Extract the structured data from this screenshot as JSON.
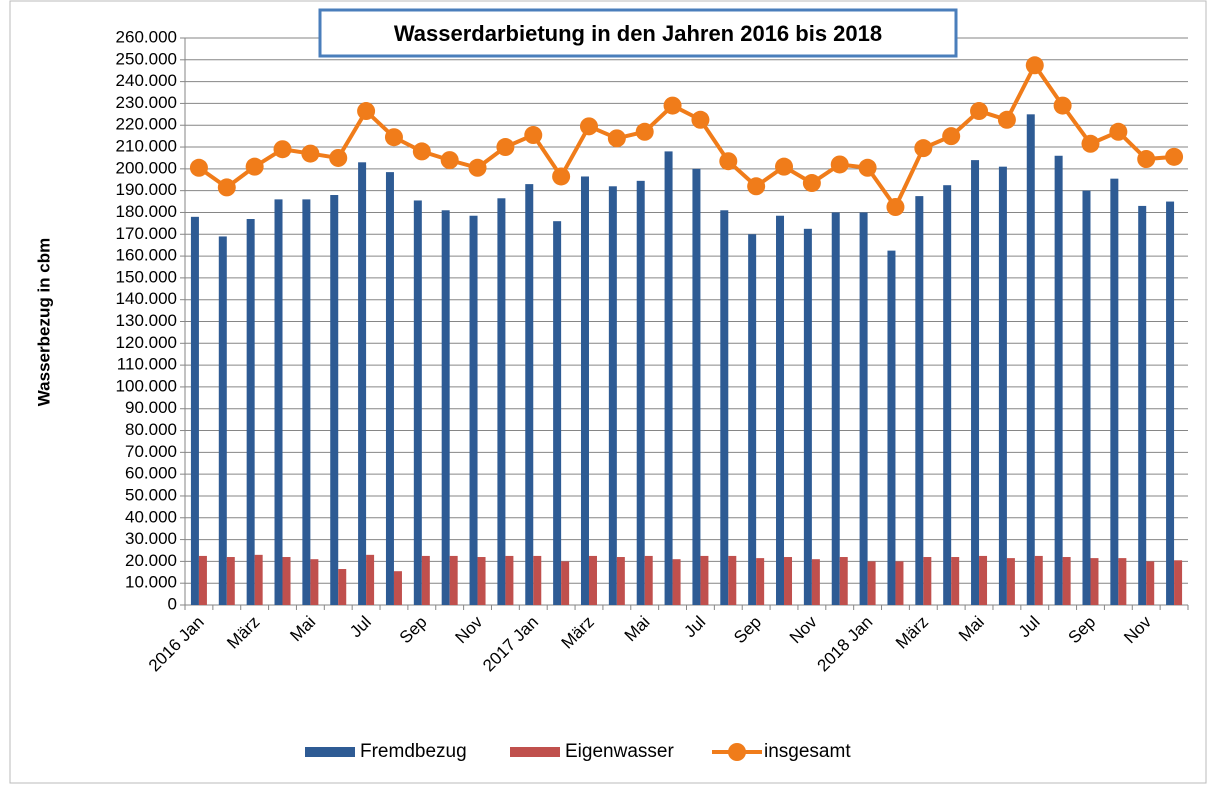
{
  "chart_data": {
    "type": "bar_line",
    "title": "Wasserdarbietung in den Jahren 2016 bis 2018",
    "y_axis_label": "Wasserbezug in cbm",
    "categories": [
      "2016 Jan",
      null,
      "März",
      null,
      "Mai",
      null,
      "Jul",
      null,
      "Sep",
      null,
      "Nov",
      null,
      "2017 Jan",
      null,
      "März",
      null,
      "Mai",
      null,
      "Jul",
      null,
      "Sep",
      null,
      "Nov",
      null,
      "2018 Jan",
      null,
      "März",
      null,
      "Mai",
      null,
      "Jul",
      null,
      "Sep",
      null,
      "Nov",
      null
    ],
    "series": [
      {
        "name": "Fremdbezug",
        "color": "#2e5b94",
        "kind": "bar",
        "values": [
          178000,
          169000,
          177000,
          186000,
          186000,
          188000,
          203000,
          198500,
          185500,
          181000,
          178500,
          186500,
          193000,
          176000,
          196500,
          192000,
          194500,
          208000,
          200000,
          181000,
          170000,
          178500,
          172500,
          180000,
          180000,
          162500,
          187500,
          192500,
          204000,
          201000,
          225000,
          206000,
          190000,
          195500,
          183000,
          185000
        ]
      },
      {
        "name": "Eigenwasser",
        "color": "#c0504d",
        "kind": "bar",
        "values": [
          22500,
          22000,
          23000,
          22000,
          21000,
          16500,
          23000,
          15500,
          22500,
          22500,
          22000,
          22500,
          22500,
          20000,
          22500,
          22000,
          22500,
          21000,
          22500,
          22500,
          21500,
          22000,
          21000,
          22000,
          20000,
          20000,
          22000,
          22000,
          22500,
          21500,
          22500,
          22000,
          21500,
          21500,
          20000,
          20500
        ]
      },
      {
        "name": "insgesamt",
        "color": "#f07c1a",
        "kind": "line",
        "values": [
          200500,
          191500,
          201000,
          209000,
          207000,
          205000,
          226500,
          214500,
          208000,
          204000,
          200500,
          210000,
          215500,
          196500,
          219500,
          214000,
          217000,
          229000,
          222500,
          203500,
          192000,
          201000,
          193500,
          202000,
          200500,
          182500,
          209500,
          215000,
          226500,
          222500,
          247500,
          229000,
          211500,
          217000,
          204500,
          205500
        ]
      }
    ],
    "ylim": [
      0,
      260000
    ],
    "yticks": [
      0,
      {
        "value": 10000,
        "label": "10.000"
      },
      {
        "value": 20000,
        "label": "20.000"
      },
      {
        "value": 30000,
        "label": "30.000"
      },
      {
        "value": 40000,
        "label": "40.000"
      },
      {
        "value": 50000,
        "label": "50.000"
      },
      {
        "value": 60000,
        "label": "60.000"
      },
      {
        "value": 70000,
        "label": "70.000"
      },
      {
        "value": 80000,
        "label": "80.000"
      },
      {
        "value": 90000,
        "label": "90.000"
      },
      {
        "value": 100000,
        "label": "100.000"
      },
      {
        "value": 110000,
        "label": "110.000"
      },
      {
        "value": 120000,
        "label": "120.000"
      },
      {
        "value": 130000,
        "label": "130.000"
      },
      {
        "value": 140000,
        "label": "140.000"
      },
      {
        "value": 150000,
        "label": "150.000"
      },
      {
        "value": 160000,
        "label": "160.000"
      },
      {
        "value": 170000,
        "label": "170.000"
      },
      {
        "value": 180000,
        "label": "180.000"
      },
      {
        "value": 190000,
        "label": "190.000"
      },
      {
        "value": 200000,
        "label": "200.000"
      },
      {
        "value": 210000,
        "label": "210.000"
      },
      {
        "value": 220000,
        "label": "220.000"
      },
      {
        "value": 230000,
        "label": "230.000"
      },
      {
        "value": 240000,
        "label": "240.000"
      },
      {
        "value": 250000,
        "label": "250.000"
      },
      {
        "value": 260000,
        "label": "260.000"
      }
    ],
    "grid": true,
    "legend": "bottom"
  }
}
